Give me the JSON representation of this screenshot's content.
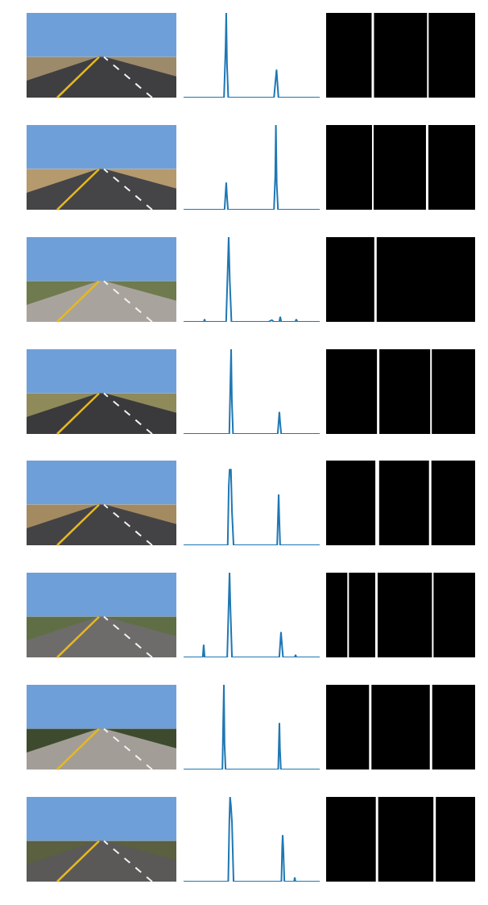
{
  "chart_data": [
    {
      "type": "line",
      "color": "#1f77b4",
      "tick_labels": false,
      "xlim": [
        0,
        1280
      ],
      "ylim": [
        0,
        100
      ],
      "x": [
        0,
        380,
        395,
        401,
        408,
        420,
        850,
        862,
        868,
        874,
        880,
        892,
        1280
      ],
      "values": [
        0,
        0,
        60,
        100,
        40,
        0,
        0,
        20,
        28,
        33,
        22,
        0,
        0
      ]
    },
    {
      "type": "line",
      "color": "#1f77b4",
      "tick_labels": false,
      "xlim": [
        0,
        1280
      ],
      "ylim": [
        0,
        100
      ],
      "x": [
        0,
        385,
        395,
        401,
        407,
        417,
        850,
        862,
        868,
        871,
        876,
        888,
        1280
      ],
      "values": [
        0,
        0,
        20,
        32,
        18,
        0,
        0,
        40,
        100,
        70,
        30,
        0,
        0
      ]
    },
    {
      "type": "line",
      "color": "#1f77b4",
      "tick_labels": false,
      "xlim": [
        0,
        1280
      ],
      "ylim": [
        0,
        100
      ],
      "x": [
        0,
        190,
        197,
        204,
        400,
        414,
        424,
        434,
        450,
        800,
        830,
        850,
        900,
        909,
        918,
        1050,
        1060,
        1070,
        1280
      ],
      "values": [
        0,
        0,
        3,
        0,
        0,
        60,
        100,
        50,
        0,
        0,
        2,
        0,
        0,
        6,
        0,
        0,
        3,
        0,
        0
      ]
    },
    {
      "type": "line",
      "color": "#1f77b4",
      "tick_labels": false,
      "xlim": [
        0,
        1280
      ],
      "ylim": [
        0,
        100
      ],
      "x": [
        0,
        430,
        440,
        447,
        454,
        465,
        885,
        895,
        901,
        907,
        918,
        1280
      ],
      "values": [
        0,
        0,
        60,
        100,
        40,
        0,
        0,
        18,
        26,
        15,
        0,
        0
      ]
    },
    {
      "type": "line",
      "color": "#1f77b4",
      "tick_labels": false,
      "xlim": [
        0,
        1280
      ],
      "ylim": [
        0,
        100
      ],
      "x": [
        0,
        415,
        425,
        433,
        439,
        445,
        455,
        470,
        880,
        889,
        894,
        899,
        908,
        1280
      ],
      "values": [
        0,
        0,
        70,
        90,
        85,
        90,
        40,
        0,
        0,
        40,
        60,
        35,
        0,
        0
      ]
    },
    {
      "type": "line",
      "color": "#1f77b4",
      "tick_labels": false,
      "xlim": [
        0,
        1280
      ],
      "ylim": [
        0,
        100
      ],
      "x": [
        0,
        180,
        189,
        198,
        410,
        422,
        432,
        440,
        455,
        900,
        910,
        916,
        922,
        935,
        1045,
        1053,
        1061,
        1280
      ],
      "values": [
        0,
        0,
        15,
        0,
        0,
        60,
        100,
        60,
        0,
        0,
        25,
        30,
        20,
        0,
        0,
        3,
        0,
        0
      ]
    },
    {
      "type": "line",
      "color": "#1f77b4",
      "tick_labels": false,
      "xlim": [
        0,
        1280
      ],
      "ylim": [
        0,
        100
      ],
      "x": [
        0,
        365,
        373,
        379,
        385,
        395,
        890,
        896,
        901,
        906,
        915,
        1280
      ],
      "values": [
        0,
        0,
        60,
        100,
        30,
        0,
        0,
        35,
        55,
        25,
        0,
        0
      ]
    },
    {
      "type": "line",
      "color": "#1f77b4",
      "tick_labels": false,
      "xlim": [
        0,
        1280
      ],
      "ylim": [
        0,
        100
      ],
      "x": [
        0,
        420,
        430,
        437,
        445,
        455,
        470,
        920,
        927,
        932,
        938,
        948,
        1040,
        1045,
        1052,
        1280
      ],
      "values": [
        0,
        0,
        70,
        100,
        90,
        70,
        0,
        0,
        40,
        55,
        38,
        0,
        0,
        5,
        0,
        0
      ]
    }
  ]
}
